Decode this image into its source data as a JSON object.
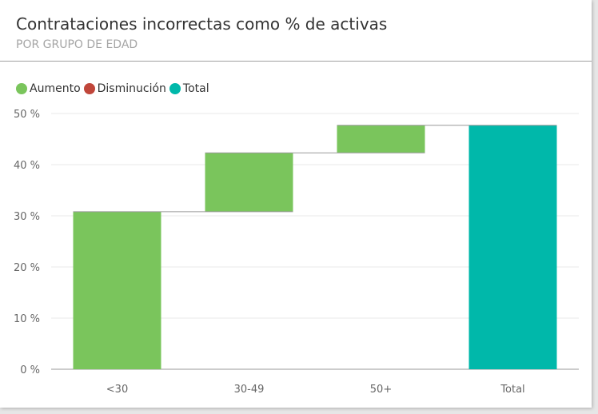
{
  "title": "Contrataciones incorrectas como % de activas",
  "subtitle": "POR GRUPO DE EDAD",
  "legend": [
    {
      "label": "Aumento",
      "color": "#7ac55c"
    },
    {
      "label": "Disminución",
      "color": "#c0463a"
    },
    {
      "label": "Total",
      "color": "#00b8aa"
    }
  ],
  "chart_data": {
    "type": "bar",
    "subtype": "waterfall",
    "title": "Contrataciones incorrectas como % de activas",
    "subtitle": "POR GRUPO DE EDAD",
    "categories": [
      "<30",
      "30-49",
      "50+",
      "Total"
    ],
    "values": [
      30.8,
      11.5,
      5.4,
      47.7
    ],
    "kinds": [
      "increase",
      "increase",
      "increase",
      "total"
    ],
    "ylim": [
      0,
      50
    ],
    "yticks": [
      0,
      10,
      20,
      30,
      40,
      50
    ],
    "ytick_labels": [
      "0 %",
      "10 %",
      "20 %",
      "30 %",
      "40 %",
      "50 %"
    ],
    "grid": true,
    "legend_position": "top-left",
    "colors": {
      "increase": "#7ac55c",
      "decrease": "#c0463a",
      "total": "#00b8aa"
    }
  }
}
